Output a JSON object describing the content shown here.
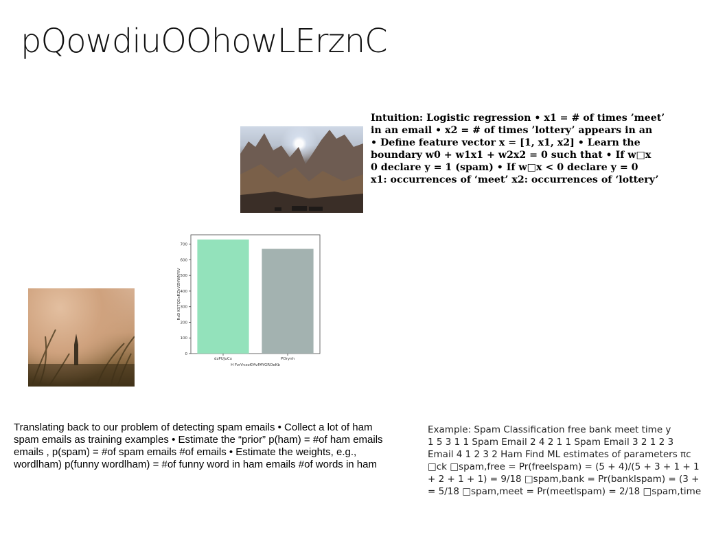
{
  "slide": {
    "title": "pQowdiuOOhowLErznC",
    "intuition_lines": [
      "Intuition: Logistic regression • x1 = # of times ’meet’",
      "in an email • x2 = # of times ’lottery’ appears in an",
      "• Define feature vector x = [1, x1, x2] • Learn the",
      "boundary w0 + w1x1 + w2x2 = 0 such that • If w□x",
      "0 declare y = 1 (spam) • If w□x < 0 declare y = 0",
      "x1: occurrences of ‘meet’ x2: occurrences of ‘lottery’"
    ],
    "translating_lines": [
      "Translating back to our problem of detecting spam emails • Collect a lot of ham",
      "spam emails as training examples • Estimate the “prior” p(ham) = #of ham emails",
      "emails , p(spam) = #of spam emails #of emails • Estimate the weights, e.g.,",
      "wordlham) p(funny wordlham) = #of funny word in ham emails #of words in ham"
    ],
    "example_lines": [
      "Example: Spam Classification free bank meet time y",
      "1 5 3 1 1 Spam Email 2 4 2 1 1 Spam Email 3 2 1 2 3",
      "Email 4 1 2 3 2 Ham Find ML estimates of parameters πc",
      "□ck □spam,free = Pr(freelspam) = (5 + 4)/(5 + 3 + 1 + 1 +",
      "+ 2 + 1 + 1) = 9/18 □spam,bank = Pr(banklspam) = (3 +",
      "= 5/18 □spam,meet = Pr(meetlspam) = 2/18 □spam,time"
    ]
  },
  "images": {
    "mountain": "mountain-photo",
    "grass": "grass-photo"
  },
  "chart_data": {
    "type": "bar",
    "categories": [
      "dzPUJuCx",
      "POrynh"
    ],
    "values": [
      730,
      670
    ],
    "colors": [
      "#93e2bb",
      "#a3b2b0"
    ],
    "xlabel": "H FzrVvxoKMvPAYGROeKb",
    "ylabel": "RsD KSTQDxRZhVZHWNYIV",
    "yticks": [
      0,
      100,
      200,
      300,
      400,
      500,
      600,
      700
    ],
    "ylim": [
      0,
      760
    ],
    "grid": false
  }
}
